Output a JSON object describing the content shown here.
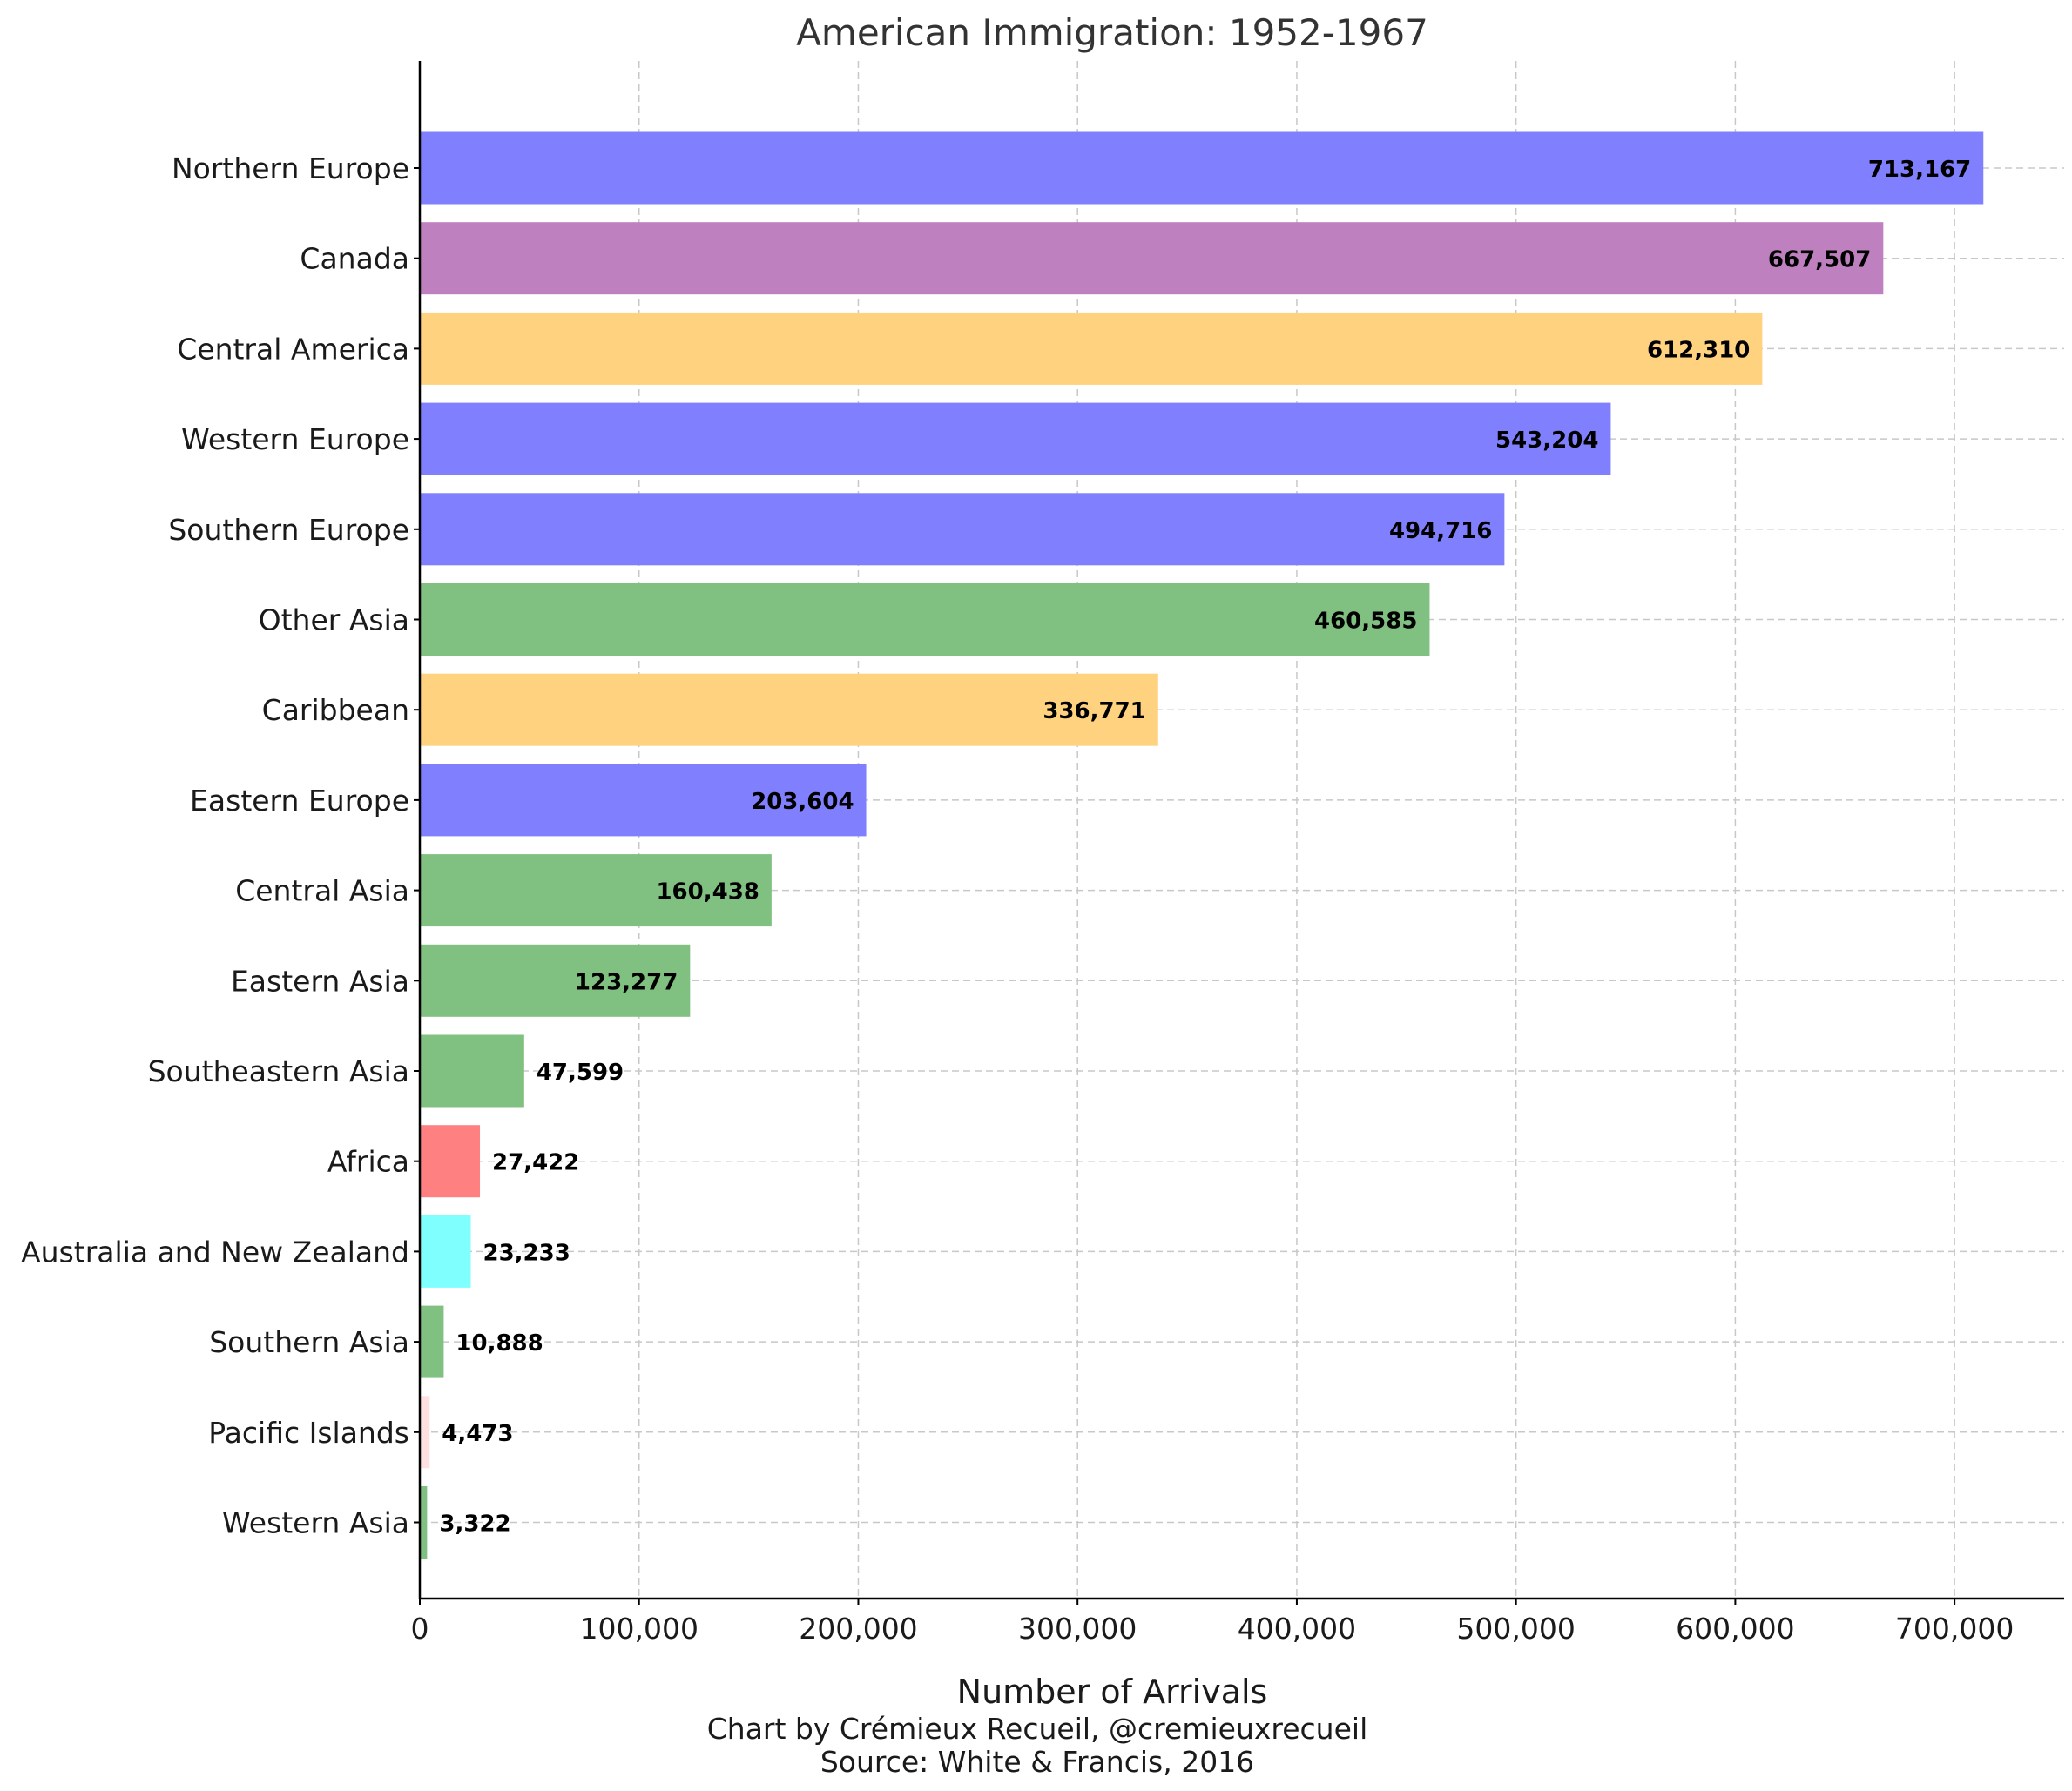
{
  "chart_data": {
    "type": "bar",
    "orientation": "horizontal",
    "title": "American Immigration: 1952-1967",
    "xlabel": "Number of Arrivals",
    "ylabel": "",
    "xlim": [
      0,
      750000
    ],
    "xticks": [
      0,
      100000,
      200000,
      300000,
      400000,
      500000,
      600000,
      700000
    ],
    "xtick_labels": [
      "0",
      "100,000",
      "200,000",
      "300,000",
      "400,000",
      "500,000",
      "600,000",
      "700,000"
    ],
    "grid": true,
    "categories": [
      "Northern Europe",
      "Canada",
      "Central America",
      "Western Europe",
      "Southern Europe",
      "Other Asia",
      "Caribbean",
      "Eastern Europe",
      "Central Asia",
      "Eastern Asia",
      "Southeastern Asia",
      "Africa",
      "Australia and New Zealand",
      "Southern Asia",
      "Pacific Islands",
      "Western Asia"
    ],
    "values": [
      713167,
      667507,
      612310,
      543204,
      494716,
      460585,
      336771,
      203604,
      160438,
      123277,
      47599,
      27422,
      23233,
      10888,
      4473,
      3322
    ],
    "value_labels": [
      "713,167",
      "667,507",
      "612,310",
      "543,204",
      "494,716",
      "460,585",
      "336,771",
      "203,604",
      "160,438",
      "123,277",
      "47,599",
      "27,422",
      "23,233",
      "10,888",
      "4,473",
      "3,322"
    ],
    "colors": [
      "#8080ff",
      "#bf80bf",
      "#ffd280",
      "#8080ff",
      "#8080ff",
      "#80c080",
      "#ffd280",
      "#8080ff",
      "#80c080",
      "#80c080",
      "#80c080",
      "#ff8080",
      "#80ffff",
      "#80c080",
      "#ffe0e0",
      "#80c080"
    ]
  },
  "credits": {
    "line1": "Chart by Crémieux Recueil, @cremieuxrecueil",
    "line2": "Source: White & Francis, 2016"
  }
}
